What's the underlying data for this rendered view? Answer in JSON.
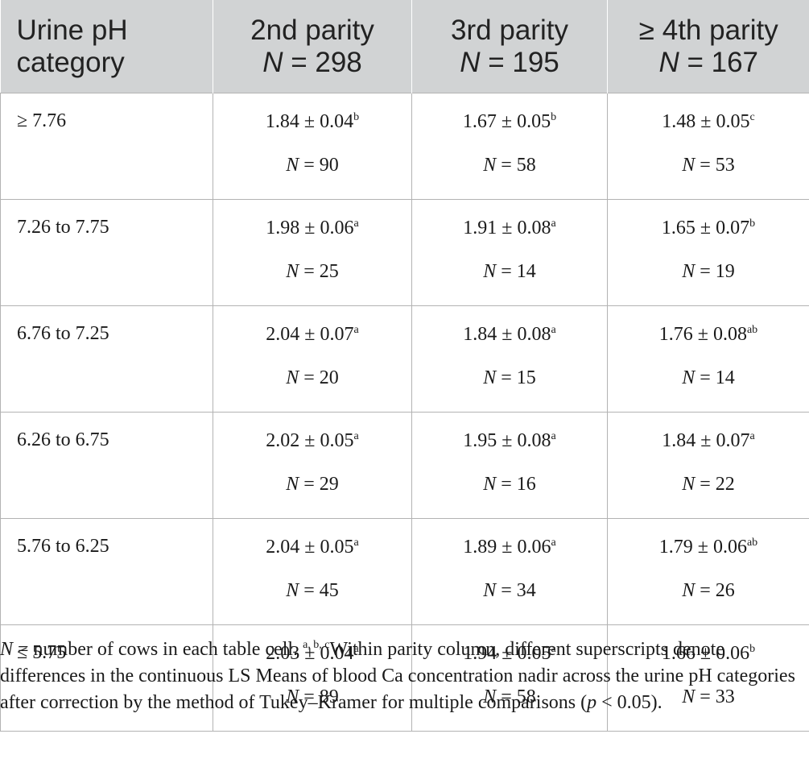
{
  "header": {
    "col0": [
      "Urine pH",
      "category"
    ],
    "cols": [
      {
        "title": "2nd parity",
        "n_label": "N",
        "n_rest": " = 298"
      },
      {
        "title": "3rd parity",
        "n_label": "N",
        "n_rest": " = 195"
      },
      {
        "title": "≥ 4th parity",
        "n_label": "N",
        "n_rest": " = 167"
      }
    ]
  },
  "rows": [
    {
      "category": "≥ 7.76",
      "cells": [
        {
          "value": "1.84 ± 0.04",
          "sup": "b",
          "n": " = 90"
        },
        {
          "value": "1.67 ± 0.05",
          "sup": "b",
          "n": " = 58"
        },
        {
          "value": "1.48 ± 0.05",
          "sup": "c",
          "n": " = 53"
        }
      ]
    },
    {
      "category": "7.26 to 7.75",
      "cells": [
        {
          "value": "1.98 ± 0.06",
          "sup": "a",
          "n": " = 25"
        },
        {
          "value": "1.91 ± 0.08",
          "sup": "a",
          "n": " = 14"
        },
        {
          "value": "1.65 ± 0.07",
          "sup": "b",
          "n": " = 19"
        }
      ]
    },
    {
      "category": "6.76 to 7.25",
      "cells": [
        {
          "value": "2.04 ± 0.07",
          "sup": "a",
          "n": " = 20"
        },
        {
          "value": "1.84 ± 0.08",
          "sup": "a",
          "n": " = 15"
        },
        {
          "value": "1.76 ± 0.08",
          "sup": "ab",
          "n": " = 14"
        }
      ]
    },
    {
      "category": "6.26 to 6.75",
      "cells": [
        {
          "value": "2.02 ± 0.05",
          "sup": "a",
          "n": " = 29"
        },
        {
          "value": "1.95 ± 0.08",
          "sup": "a",
          "n": " = 16"
        },
        {
          "value": "1.84 ± 0.07",
          "sup": "a",
          "n": " = 22"
        }
      ]
    },
    {
      "category": "5.76 to 6.25",
      "cells": [
        {
          "value": "2.04 ± 0.05",
          "sup": "a",
          "n": " = 45"
        },
        {
          "value": "1.89 ± 0.06",
          "sup": "a",
          "n": " = 34"
        },
        {
          "value": "1.79 ± 0.06",
          "sup": "ab",
          "n": " = 26"
        }
      ]
    },
    {
      "category": "≤ 5.75",
      "cells": [
        {
          "value": "2.03 ± 0.04",
          "sup": "a",
          "n": " = 89"
        },
        {
          "value": "1.94 ± 0.05",
          "sup": "a",
          "n": " = 58"
        },
        {
          "value": "1.66 ± 0.06",
          "sup": "b",
          "n": " = 33"
        }
      ]
    }
  ],
  "n_symbol": "N",
  "footnote": {
    "n_symbol": "N",
    "part1": " = number of cows in each table cell. ",
    "sup": "a, b, c",
    "part2": "Within parity column, different superscripts denote differences in the continuous LS Means of blood Ca concentration nadir across the urine pH categories after correction by the method of Tukey–Kramer for multiple comparisons (",
    "p_symbol": "p",
    "part3": " < 0.05)."
  }
}
